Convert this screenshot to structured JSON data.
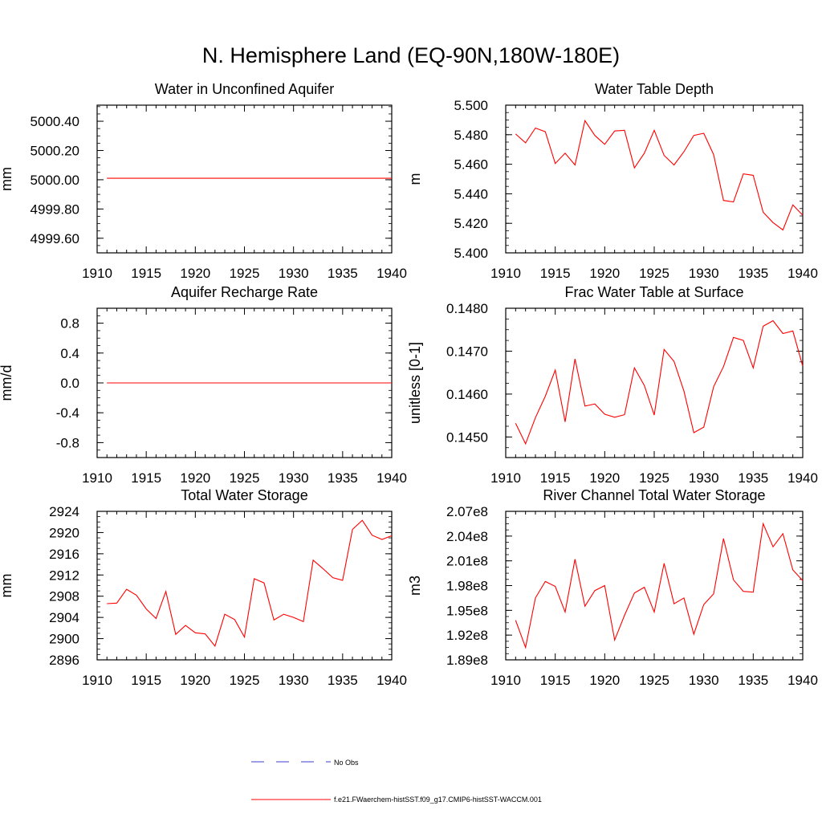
{
  "page": {
    "title": "N. Hemisphere Land (EQ-90N,180W-180E)"
  },
  "colors": {
    "model": "#ff0000",
    "obs": "#3c3ccc",
    "axes": "#000000"
  },
  "legend": {
    "entries": [
      {
        "label": "No Obs",
        "style": "dashed",
        "color": "#3c3ccc"
      },
      {
        "label": "f.e21.FWaerchem-histSST.f09_g17.CMIP6-histSST-WACCM.001",
        "style": "solid",
        "color": "#ff0000"
      }
    ]
  },
  "chart_data": [
    {
      "type": "line",
      "title": "Water in Unconfined Aquifer",
      "ylabel": "mm",
      "xlim": [
        1910,
        1940
      ],
      "xticks": [
        "1910",
        "1915",
        "1920",
        "1925",
        "1930",
        "1935",
        "1940"
      ],
      "ylim": [
        4999.5,
        5000.51
      ],
      "yticks": [
        4999.6,
        4999.8,
        5000.0,
        5000.2,
        5000.4
      ],
      "yticklabels": [
        "4999.60",
        "4999.80",
        "5000.00",
        "5000.20",
        "5000.40"
      ],
      "x": [
        1911,
        1912,
        1913,
        1914,
        1915,
        1916,
        1917,
        1918,
        1919,
        1920,
        1921,
        1922,
        1923,
        1924,
        1925,
        1926,
        1927,
        1928,
        1929,
        1930,
        1931,
        1932,
        1933,
        1934,
        1935,
        1936,
        1937,
        1938,
        1939,
        1940
      ],
      "series": [
        {
          "values": [
            5000.01,
            5000.01,
            5000.01,
            5000.01,
            5000.01,
            5000.01,
            5000.01,
            5000.01,
            5000.01,
            5000.01,
            5000.01,
            5000.01,
            5000.01,
            5000.01,
            5000.01,
            5000.01,
            5000.01,
            5000.01,
            5000.01,
            5000.01,
            5000.01,
            5000.01,
            5000.01,
            5000.01,
            5000.01,
            5000.01,
            5000.01,
            5000.01,
            5000.01,
            5000.01
          ]
        }
      ]
    },
    {
      "type": "line",
      "title": "Water Table Depth",
      "ylabel": "m",
      "xlim": [
        1910,
        1940
      ],
      "xticks": [
        "1910",
        "1915",
        "1920",
        "1925",
        "1930",
        "1935",
        "1940"
      ],
      "ylim": [
        5.4,
        5.5
      ],
      "yticks": [
        5.4,
        5.42,
        5.44,
        5.46,
        5.48,
        5.5
      ],
      "yticklabels": [
        "5.400",
        "5.420",
        "5.440",
        "5.460",
        "5.480",
        "5.500"
      ],
      "x": [
        1911,
        1912,
        1913,
        1914,
        1915,
        1916,
        1917,
        1918,
        1919,
        1920,
        1921,
        1922,
        1923,
        1924,
        1925,
        1926,
        1927,
        1928,
        1929,
        1930,
        1931,
        1932,
        1933,
        1934,
        1935,
        1936,
        1937,
        1938,
        1939,
        1940
      ],
      "series": [
        {
          "values": [
            5.4805,
            5.4745,
            5.4845,
            5.482,
            5.4605,
            5.4675,
            5.4595,
            5.4895,
            5.4795,
            5.4735,
            5.4825,
            5.483,
            5.4575,
            5.4675,
            5.483,
            5.466,
            5.4595,
            5.4685,
            5.4795,
            5.481,
            5.4665,
            5.4355,
            5.4345,
            5.4535,
            5.4525,
            5.4275,
            5.4205,
            5.4155,
            5.4325,
            5.4255
          ]
        }
      ]
    },
    {
      "type": "line",
      "title": "Aquifer Recharge Rate",
      "ylabel": "mm/d",
      "xlim": [
        1910,
        1940
      ],
      "xticks": [
        "1910",
        "1915",
        "1920",
        "1925",
        "1930",
        "1935",
        "1940"
      ],
      "ylim": [
        -1.0,
        1.0
      ],
      "yticks": [
        -0.8,
        -0.4,
        0.0,
        0.4,
        0.8
      ],
      "yticklabels": [
        "-0.8",
        "-0.4",
        "0.0",
        "0.4",
        "0.8"
      ],
      "x": [
        1911,
        1912,
        1913,
        1914,
        1915,
        1916,
        1917,
        1918,
        1919,
        1920,
        1921,
        1922,
        1923,
        1924,
        1925,
        1926,
        1927,
        1928,
        1929,
        1930,
        1931,
        1932,
        1933,
        1934,
        1935,
        1936,
        1937,
        1938,
        1939,
        1940
      ],
      "series": [
        {
          "values": [
            0,
            0,
            0,
            0,
            0,
            0,
            0,
            0,
            0,
            0,
            0,
            0,
            0,
            0,
            0,
            0,
            0,
            0,
            0,
            0,
            0,
            0,
            0,
            0,
            0,
            0,
            0,
            0,
            0,
            0
          ]
        }
      ]
    },
    {
      "type": "line",
      "title": "Frac Water Table at Surface",
      "ylabel": "unitless [0-1]",
      "xlim": [
        1910,
        1940
      ],
      "xticks": [
        "1910",
        "1915",
        "1920",
        "1925",
        "1930",
        "1935",
        "1940"
      ],
      "ylim": [
        0.14452,
        0.148
      ],
      "yticks": [
        0.145,
        0.146,
        0.147,
        0.148
      ],
      "yticklabels": [
        "0.1450",
        "0.1460",
        "0.1470",
        "0.1480"
      ],
      "x": [
        1911,
        1912,
        1913,
        1914,
        1915,
        1916,
        1917,
        1918,
        1919,
        1920,
        1921,
        1922,
        1923,
        1924,
        1925,
        1926,
        1927,
        1928,
        1929,
        1930,
        1931,
        1932,
        1933,
        1934,
        1935,
        1936,
        1937,
        1938,
        1939,
        1940
      ],
      "series": [
        {
          "values": [
            0.14532,
            0.14484,
            0.14545,
            0.14595,
            0.14656,
            0.14535,
            0.14682,
            0.14572,
            0.14577,
            0.14553,
            0.14546,
            0.14552,
            0.14661,
            0.1462,
            0.14551,
            0.14704,
            0.14676,
            0.14607,
            0.1451,
            0.14523,
            0.14617,
            0.14664,
            0.14732,
            0.14725,
            0.14661,
            0.14758,
            0.14771,
            0.14741,
            0.14747,
            0.14665
          ]
        }
      ]
    },
    {
      "type": "line",
      "title": "Total Water Storage",
      "ylabel": "mm",
      "xlim": [
        1910,
        1940
      ],
      "xticks": [
        "1910",
        "1915",
        "1920",
        "1925",
        "1930",
        "1935",
        "1940"
      ],
      "ylim": [
        2896,
        2924
      ],
      "yticks": [
        2896,
        2900,
        2904,
        2908,
        2912,
        2916,
        2920,
        2924
      ],
      "yticklabels": [
        "2896",
        "2900",
        "2904",
        "2908",
        "2912",
        "2916",
        "2920",
        "2924"
      ],
      "x": [
        1911,
        1912,
        1913,
        1914,
        1915,
        1916,
        1917,
        1918,
        1919,
        1920,
        1921,
        1922,
        1923,
        1924,
        1925,
        1926,
        1927,
        1928,
        1929,
        1930,
        1931,
        1932,
        1933,
        1934,
        1935,
        1936,
        1937,
        1938,
        1939,
        1940
      ],
      "series": [
        {
          "values": [
            2906.6,
            2906.7,
            2909.3,
            2908.2,
            2905.6,
            2903.8,
            2908.9,
            2900.8,
            2902.5,
            2901.1,
            2900.9,
            2898.6,
            2904.6,
            2903.6,
            2900.3,
            2911.3,
            2910.5,
            2903.5,
            2904.6,
            2904.0,
            2903.2,
            2914.8,
            2913.2,
            2911.5,
            2911.0,
            2920.6,
            2922.3,
            2919.5,
            2918.7,
            2919.4
          ]
        }
      ]
    },
    {
      "type": "line",
      "title": "River Channel Total Water Storage",
      "ylabel": "m3",
      "xlim": [
        1910,
        1940
      ],
      "xticks": [
        "1910",
        "1915",
        "1920",
        "1925",
        "1930",
        "1935",
        "1940"
      ],
      "ylim": [
        189000000.0,
        207000000.0
      ],
      "yticks": [
        189000000.0,
        192000000.0,
        195000000.0,
        198000000.0,
        201000000.0,
        204000000.0,
        207000000.0
      ],
      "yticklabels": [
        "1.89e8",
        "1.92e8",
        "1.95e8",
        "1.98e8",
        "2.01e8",
        "2.04e8",
        "2.07e8"
      ],
      "x": [
        1911,
        1912,
        1913,
        1914,
        1915,
        1916,
        1917,
        1918,
        1919,
        1920,
        1921,
        1922,
        1923,
        1924,
        1925,
        1926,
        1927,
        1928,
        1929,
        1930,
        1931,
        1932,
        1933,
        1934,
        1935,
        1936,
        1937,
        1938,
        1939,
        1940
      ],
      "series": [
        {
          "values": [
            193800000.0,
            190500000.0,
            196500000.0,
            198500000.0,
            197900000.0,
            194800000.0,
            201200000.0,
            195500000.0,
            197400000.0,
            198000000.0,
            191400000.0,
            194400000.0,
            197100000.0,
            197800000.0,
            194800000.0,
            200700000.0,
            195800000.0,
            196500000.0,
            192100000.0,
            195700000.0,
            197000000.0,
            203700000.0,
            198700000.0,
            197300000.0,
            197200000.0,
            205500000.0,
            202700000.0,
            204300000.0,
            199900000.0,
            198600000.0
          ]
        }
      ]
    }
  ]
}
